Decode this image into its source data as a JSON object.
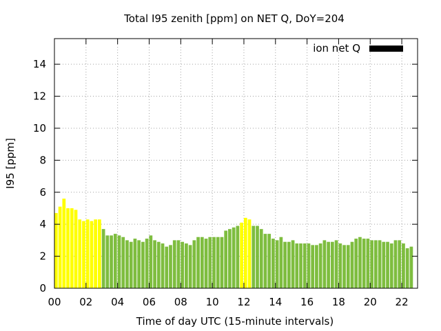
{
  "chart_data": {
    "type": "bar",
    "title": "Total I95 zenith [ppm] on NET Q, DoY=204",
    "xlabel": "Time of day UTC (15-minute intervals)",
    "ylabel": "I95 [ppm]",
    "legend": {
      "label": "ion net Q",
      "placement": "top-right",
      "color": "#000000"
    },
    "grid": true,
    "xlim": [
      0,
      23
    ],
    "ylim": [
      0,
      15.6
    ],
    "x_ticks": [
      "00",
      "02",
      "04",
      "06",
      "08",
      "10",
      "12",
      "14",
      "16",
      "18",
      "20",
      "22"
    ],
    "y_ticks": [
      "0",
      "2",
      "4",
      "6",
      "8",
      "10",
      "12",
      "14"
    ],
    "colors": {
      "high": "#ffff00",
      "normal": "#7ebd3f"
    },
    "values": [
      4.7,
      5.1,
      5.6,
      5.0,
      5.0,
      4.9,
      4.3,
      4.2,
      4.3,
      4.2,
      4.3,
      4.3,
      3.7,
      3.3,
      3.3,
      3.4,
      3.3,
      3.2,
      3.0,
      2.9,
      3.1,
      3.0,
      2.9,
      3.1,
      3.3,
      3.0,
      2.9,
      2.8,
      2.6,
      2.7,
      3.0,
      3.0,
      2.9,
      2.8,
      2.7,
      3.0,
      3.2,
      3.2,
      3.1,
      3.2,
      3.2,
      3.2,
      3.2,
      3.6,
      3.7,
      3.8,
      3.9,
      4.1,
      4.4,
      4.3,
      3.9,
      3.9,
      3.7,
      3.4,
      3.4,
      3.1,
      3.0,
      3.2,
      2.9,
      2.9,
      3.0,
      2.8,
      2.8,
      2.8,
      2.8,
      2.7,
      2.7,
      2.8,
      3.0,
      2.9,
      2.9,
      3.0,
      2.8,
      2.7,
      2.7,
      2.9,
      3.1,
      3.2,
      3.1,
      3.1,
      3.0,
      3.0,
      3.0,
      2.9,
      2.9,
      2.8,
      3.0,
      3.0,
      2.8,
      2.5,
      2.6
    ],
    "levels": [
      "high",
      "high",
      "high",
      "high",
      "high",
      "high",
      "high",
      "high",
      "high",
      "high",
      "high",
      "high",
      "normal",
      "normal",
      "normal",
      "normal",
      "normal",
      "normal",
      "normal",
      "normal",
      "normal",
      "normal",
      "normal",
      "normal",
      "normal",
      "normal",
      "normal",
      "normal",
      "normal",
      "normal",
      "normal",
      "normal",
      "normal",
      "normal",
      "normal",
      "normal",
      "normal",
      "normal",
      "normal",
      "normal",
      "normal",
      "normal",
      "normal",
      "normal",
      "normal",
      "normal",
      "normal",
      "high",
      "high",
      "high",
      "normal",
      "normal",
      "normal",
      "normal",
      "normal",
      "normal",
      "normal",
      "normal",
      "normal",
      "normal",
      "normal",
      "normal",
      "normal",
      "normal",
      "normal",
      "normal",
      "normal",
      "normal",
      "normal",
      "normal",
      "normal",
      "normal",
      "normal",
      "normal",
      "normal",
      "normal",
      "normal",
      "normal",
      "normal",
      "normal",
      "normal",
      "normal",
      "normal",
      "normal",
      "normal",
      "normal",
      "normal",
      "normal",
      "normal",
      "normal",
      "normal"
    ]
  }
}
